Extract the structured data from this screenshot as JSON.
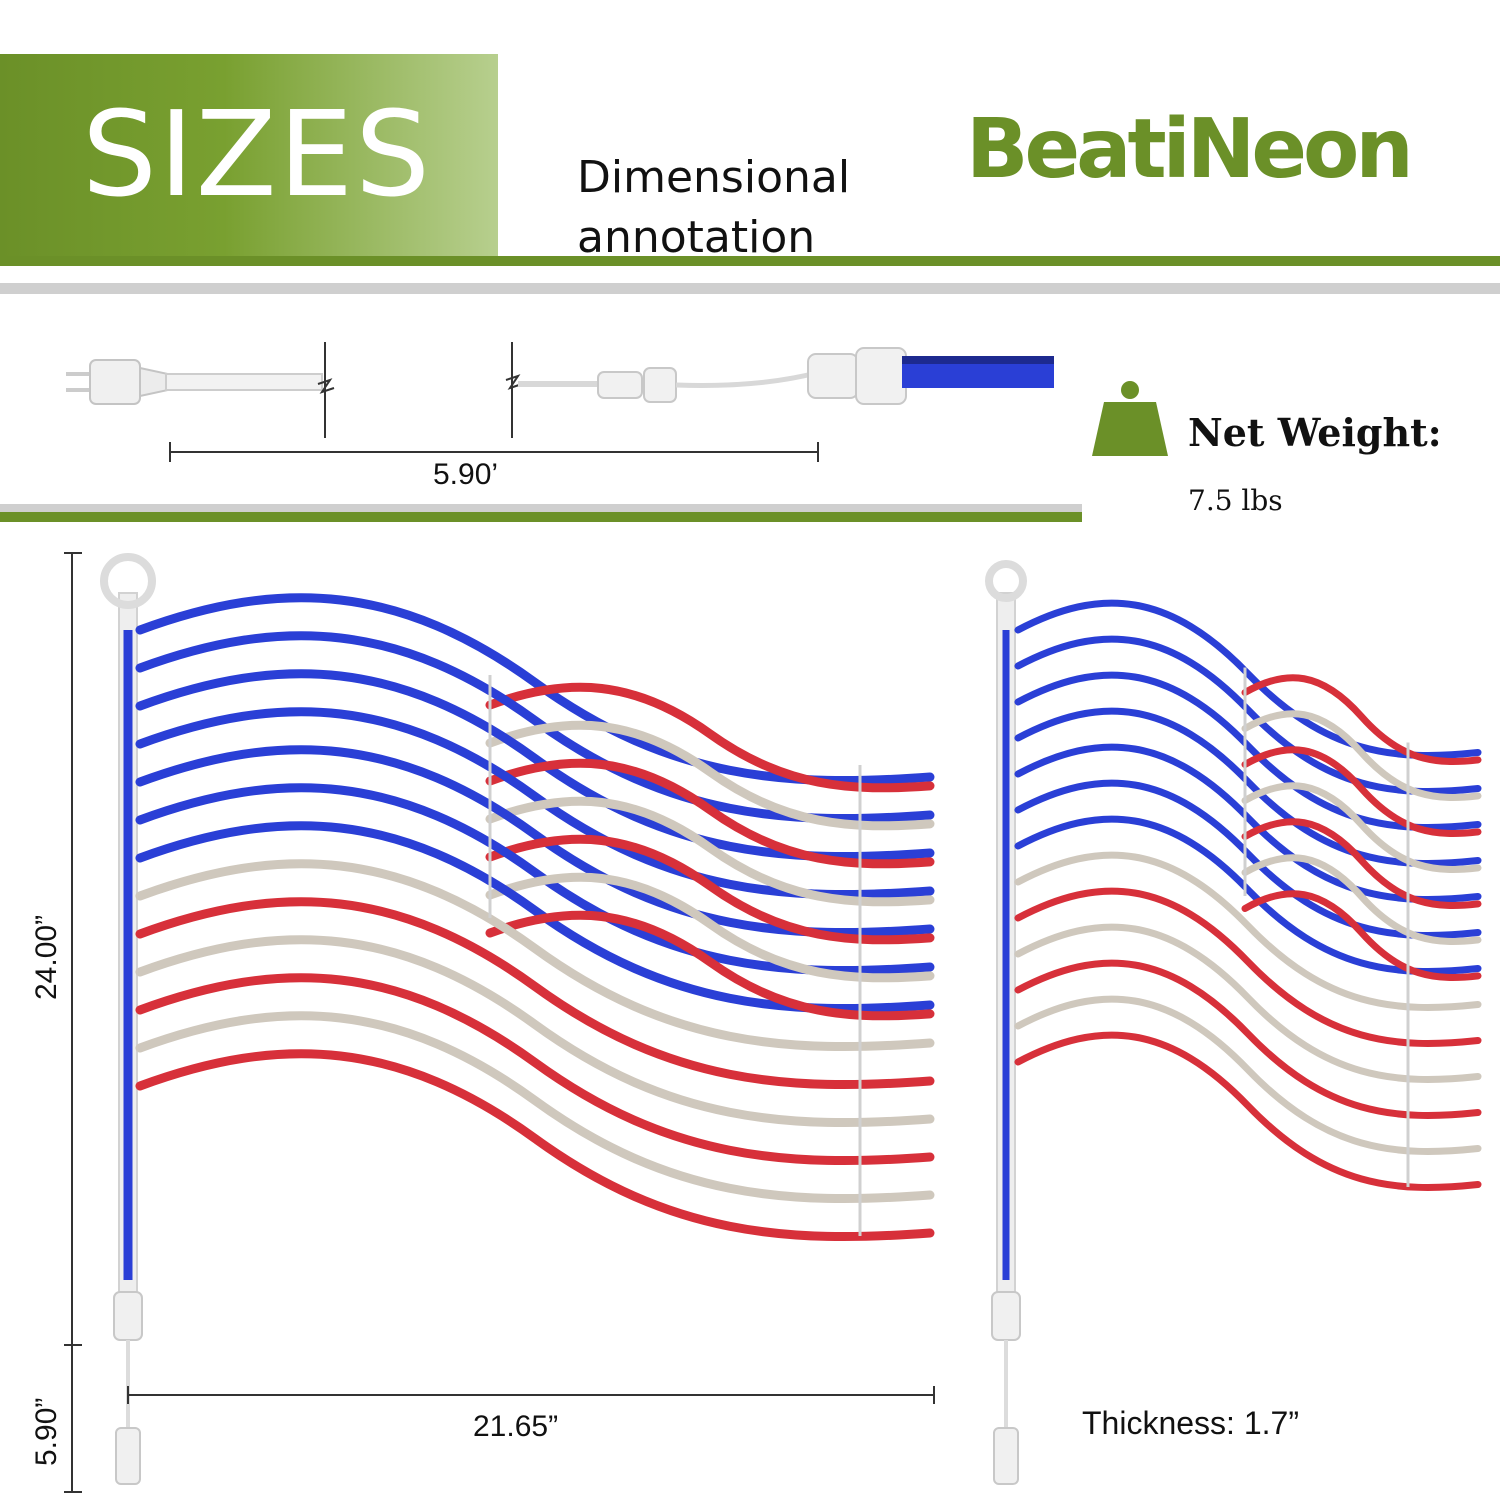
{
  "header": {
    "title": "SIZES",
    "subtitle_line1": "Dimensional",
    "subtitle_line2": "annotation",
    "brand": "BeatiNeon"
  },
  "cable": {
    "length_label": "5.90’"
  },
  "weight": {
    "label": "Net Weight:",
    "value": "7.5 lbs",
    "icon": "weight-icon"
  },
  "dimensions": {
    "height_label": "24.00”",
    "stake_label": "5.90”",
    "width_label": "21.65”",
    "thickness_label": "Thickness: 1.7”"
  },
  "colors": {
    "brand_green": "#6b9028",
    "neon_blue": "#2a3fd6",
    "neon_red": "#d7303a",
    "neon_white": "#cfc8bd"
  }
}
